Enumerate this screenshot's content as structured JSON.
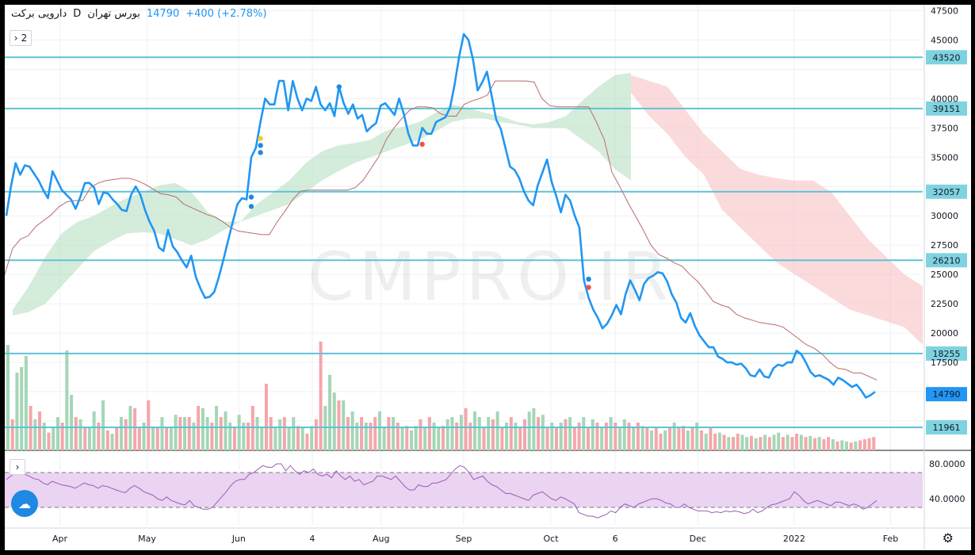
{
  "header": {
    "symbol": "دارویی برکت",
    "interval": "D",
    "exchange": "بورس تهران",
    "price": "14790",
    "change": "+400 (+2.78%)"
  },
  "controls": {
    "collapse_main": "2",
    "collapse_indicator": "›"
  },
  "watermark": "CMPRO.IR",
  "colors": {
    "price_line": "#2196f3",
    "hline": "#5fc3d6",
    "kumo_bull": "#b7dfc2",
    "kumo_bear": "#f8c2c4",
    "kijun": "#b96b6b",
    "vol_up": "#a5d6b7",
    "vol_down": "#f4a6aa",
    "rsi_line": "#9c5bb8",
    "rsi_band": "#ead4f1",
    "tag_bg": "#7fd3e0",
    "last_tag": "#2196f3"
  },
  "chart_data": {
    "type": "line",
    "symbol": "دارویی برکت",
    "interval": "D",
    "price": {
      "ylim": [
        10000,
        48000
      ],
      "yticks": [
        12500,
        15000,
        17500,
        20000,
        22500,
        25000,
        27500,
        30000,
        32500,
        35000,
        37500,
        40000,
        42500,
        45000,
        47500
      ],
      "hidden_ticks": [
        12500,
        32500,
        42500
      ],
      "horizontal_levels": [
        43520,
        39151,
        32057,
        26210,
        18255,
        11961
      ],
      "last_price": 14790,
      "x_labels": [
        "Apr",
        "May",
        "Jun",
        "4",
        "Aug",
        "Sep",
        "Oct",
        "6",
        "Dec",
        "2022",
        "Feb"
      ],
      "x_label_pos": [
        0.06,
        0.155,
        0.255,
        0.335,
        0.41,
        0.5,
        0.595,
        0.665,
        0.755,
        0.86,
        0.965
      ],
      "series": [
        {
          "kind": "close",
          "values": [
            30000,
            32500,
            34500,
            33500,
            34300,
            34200,
            33600,
            33000,
            32200,
            31500,
            33800,
            33000,
            32200,
            31800,
            31400,
            30600,
            31600,
            32800,
            32800,
            32400,
            31000,
            32000,
            31900,
            31400,
            31000,
            30500,
            30400,
            31800,
            32500,
            31800,
            30500,
            29500,
            28700,
            27300,
            27000,
            28800,
            27400,
            26900,
            26200,
            25600,
            26600,
            24800,
            23800,
            23000,
            23100,
            23500,
            24800,
            26300,
            27900,
            29500,
            31000,
            31500,
            31400,
            35000,
            35800,
            38000,
            40000,
            39500,
            39500,
            41500,
            41500,
            39000,
            41500,
            40000,
            39000,
            40000,
            39800,
            41000,
            39500,
            39000,
            39600,
            38500,
            41000,
            39600,
            38700,
            39500,
            38300,
            38600,
            37200,
            37600,
            37900,
            39400,
            39600,
            39100,
            38600,
            40000,
            38700,
            37000,
            36000,
            36000,
            37500,
            37000,
            37000,
            38000,
            38200,
            38400,
            39200,
            41200,
            43600,
            45500,
            45000,
            43300,
            40700,
            41400,
            42300,
            40300,
            38200,
            37400,
            35800,
            34200,
            33900,
            33200,
            32100,
            31300,
            30900,
            32600,
            33700,
            34800,
            32900,
            31700,
            30300,
            31800,
            31300,
            30000,
            29000,
            24500,
            23000,
            22000,
            21300,
            20400,
            20800,
            21500,
            22400,
            21600,
            23300,
            24500,
            23700,
            22800,
            24200,
            24700,
            24900,
            25200,
            25100,
            24400,
            23300,
            22600,
            21300,
            20900,
            21700,
            20600,
            19800,
            19300,
            18800,
            18800,
            18000,
            17800,
            17500,
            17500,
            17300,
            17400,
            17000,
            16400,
            16300,
            16900,
            16300,
            16200,
            17000,
            17300,
            17200,
            17500,
            17500,
            18500,
            18200,
            17500,
            16700,
            16300,
            16400,
            16200,
            16000,
            15600,
            16200,
            16000,
            15700,
            15400,
            15600,
            15100,
            14500,
            14700,
            15000
          ]
        },
        {
          "kind": "kijun",
          "values": [
            25000,
            27200,
            28000,
            28300,
            29100,
            29600,
            30100,
            30800,
            31200,
            31300,
            31300,
            32400,
            32800,
            33000,
            33100,
            33200,
            33200,
            33000,
            32700,
            32300,
            31900,
            31800,
            31600,
            31000,
            30700,
            30400,
            30100,
            29900,
            29500,
            29000,
            28700,
            28600,
            28500,
            28400,
            28400,
            29500,
            30400,
            31400,
            32100,
            32200,
            32200,
            32200,
            32200,
            32200,
            32200,
            32400,
            33000,
            34000,
            35000,
            36500,
            37500,
            38300,
            39000,
            39300,
            39300,
            39200,
            38700,
            38500,
            38500,
            39500,
            39800,
            40000,
            40300,
            41500,
            41500,
            41500,
            41500,
            41500,
            41400,
            40000,
            39400,
            39300,
            39300,
            39300,
            39300,
            39300,
            38000,
            36500,
            33700,
            32500,
            31200,
            30000,
            28800,
            27500,
            26700,
            26400,
            26000,
            25700,
            25000,
            24400,
            23600,
            22700,
            22400,
            22200,
            21600,
            21300,
            21100,
            20900,
            20800,
            20700,
            20500,
            20000,
            19500,
            19000,
            18700,
            18200,
            17500,
            17000,
            16900,
            16600,
            16600,
            16300,
            16000
          ]
        },
        {
          "kind": "kumo_bull",
          "upper": [
            22000,
            24000,
            26500,
            28500,
            29500,
            30000,
            30800,
            31500,
            32000,
            32600,
            32800,
            32000,
            30300,
            29500,
            29500,
            31000,
            32000,
            33000,
            34500,
            35500,
            36000,
            36200,
            36500,
            37300,
            37600,
            38000,
            38800,
            39500,
            39200,
            38800,
            38500,
            38000,
            37800,
            38000,
            38500,
            39800,
            41000,
            42000,
            42200
          ],
          "lower": [
            21500,
            21800,
            22500,
            24000,
            25500,
            27000,
            27800,
            28500,
            28600,
            28500,
            28000,
            27500,
            28000,
            28800,
            29500,
            30000,
            30500,
            31000,
            32000,
            33000,
            33800,
            34500,
            35000,
            35500,
            36000,
            36500,
            37200,
            38000,
            38300,
            38300,
            38000,
            37800,
            37500,
            37500,
            37500,
            36500,
            35500,
            34000,
            33000
          ]
        },
        {
          "kind": "kumo_bear",
          "upper": [
            42000,
            41500,
            41000,
            39000,
            37000,
            35500,
            34000,
            33500,
            33200,
            33000,
            33000,
            32000,
            30000,
            28000,
            26500,
            25000,
            24000
          ],
          "lower": [
            40500,
            38500,
            37000,
            35000,
            33500,
            30500,
            29000,
            27500,
            26000,
            25000,
            24000,
            23000,
            22000,
            21500,
            21000,
            20500,
            19000
          ]
        }
      ],
      "markers": [
        {
          "color": "#ffca28",
          "y": 36600
        },
        {
          "color": "#1e88e5",
          "y": 36000
        },
        {
          "color": "#1e88e5",
          "y": 35400
        },
        {
          "color": "#1e88e5",
          "y": 31600
        },
        {
          "color": "#1e88e5",
          "y": 30800
        },
        {
          "color": "#1e88e5",
          "y": 41000
        },
        {
          "color": "#ef5350",
          "y": 36100
        },
        {
          "color": "#1e88e5",
          "y": 24600
        },
        {
          "color": "#ef5350",
          "y": 23900
        }
      ]
    },
    "volume": {
      "values": [
        0.95,
        0.28,
        0.7,
        0.75,
        0.85,
        0.4,
        0.28,
        0.35,
        0.25,
        0.16,
        0.2,
        0.3,
        0.25,
        0.9,
        0.5,
        0.3,
        0.28,
        0.2,
        0.2,
        0.35,
        0.25,
        0.45,
        0.18,
        0.15,
        0.2,
        0.3,
        0.28,
        0.4,
        0.38,
        0.2,
        0.25,
        0.45,
        0.2,
        0.2,
        0.3,
        0.2,
        0.2,
        0.32,
        0.3,
        0.3,
        0.3,
        0.25,
        0.4,
        0.38,
        0.3,
        0.25,
        0.4,
        0.3,
        0.35,
        0.25,
        0.2,
        0.32,
        0.25,
        0.25,
        0.4,
        0.3,
        0.2,
        0.6,
        0.3,
        0.2,
        0.28,
        0.3,
        0.2,
        0.3,
        0.22,
        0.2,
        0.15,
        0.22,
        0.28,
        0.98,
        0.4,
        0.68,
        0.52,
        0.45,
        0.45,
        0.3,
        0.35,
        0.25,
        0.3,
        0.25,
        0.25,
        0.3,
        0.35,
        0.2,
        0.3,
        0.3,
        0.25,
        0.2,
        0.22,
        0.18,
        0.22,
        0.28,
        0.2,
        0.3,
        0.25,
        0.2,
        0.22,
        0.28,
        0.3,
        0.25,
        0.32,
        0.38,
        0.25,
        0.35,
        0.3,
        0.2,
        0.3,
        0.28,
        0.35,
        0.2,
        0.25,
        0.3,
        0.25,
        0.2,
        0.28,
        0.35,
        0.38,
        0.3,
        0.32,
        0.2,
        0.25,
        0.2,
        0.25,
        0.28,
        0.3,
        0.2,
        0.25,
        0.3,
        0.2,
        0.28,
        0.25,
        0.2,
        0.25,
        0.3,
        0.25,
        0.2,
        0.28,
        0.25,
        0.2,
        0.25,
        0.22,
        0.2,
        0.18,
        0.2,
        0.15,
        0.18,
        0.2,
        0.25,
        0.2,
        0.22,
        0.18,
        0.2,
        0.25,
        0.18,
        0.15,
        0.2,
        0.15,
        0.16,
        0.14,
        0.12,
        0.12,
        0.15,
        0.14,
        0.12,
        0.13,
        0.11,
        0.12,
        0.14,
        0.12,
        0.14,
        0.16,
        0.12,
        0.14,
        0.12,
        0.15,
        0.14,
        0.12,
        0.13,
        0.11,
        0.12,
        0.1,
        0.12,
        0.1,
        0.08,
        0.09,
        0.08,
        0.07,
        0.08,
        0.09,
        0.1,
        0.11,
        0.12
      ],
      "colors_up": [
        1,
        0,
        1,
        1,
        1,
        0,
        1,
        0,
        1,
        0,
        1,
        1,
        0,
        1,
        1,
        0,
        1,
        0,
        1,
        1,
        0,
        1,
        0,
        1,
        0,
        1,
        0,
        1,
        0,
        0,
        1,
        0,
        1,
        0,
        1,
        0,
        1,
        1,
        0,
        1,
        0,
        1,
        0,
        1,
        1,
        0,
        1,
        0,
        1,
        1,
        0,
        1,
        1,
        0,
        0,
        1,
        1,
        0,
        0,
        1,
        1,
        0,
        1,
        1,
        0,
        1,
        0,
        1,
        0,
        0,
        1,
        1,
        1,
        0,
        1,
        0,
        1,
        1,
        0,
        1,
        0,
        0,
        1,
        1,
        0,
        1,
        0,
        1,
        0,
        1,
        1,
        0,
        1,
        0,
        1,
        1,
        0,
        1,
        1,
        0,
        1,
        0,
        0,
        1,
        1,
        0,
        1,
        0,
        1,
        0,
        1,
        0,
        1,
        0,
        0,
        1,
        1,
        0,
        1,
        0,
        1,
        0,
        1,
        0,
        1,
        0,
        0,
        1,
        0,
        1,
        0,
        1,
        0,
        1,
        0,
        1,
        1,
        0,
        1,
        0,
        1,
        0,
        1,
        0,
        0,
        1,
        0,
        1,
        0,
        0,
        1,
        0,
        1,
        0,
        1,
        0,
        0,
        1,
        0,
        1,
        0,
        0,
        1,
        1,
        0,
        1,
        0,
        1,
        0,
        1,
        1,
        0,
        1,
        0,
        0,
        1,
        0,
        1,
        0,
        1,
        0,
        0,
        1,
        0,
        1,
        1,
        0,
        1
      ]
    },
    "rsi": {
      "ylim": [
        10,
        90
      ],
      "yticks": [
        40,
        80
      ],
      "tick_labels": [
        "40.0000",
        "80.0000"
      ],
      "band": [
        30,
        70
      ],
      "values": [
        62,
        66,
        70,
        72,
        68,
        66,
        63,
        62,
        58,
        56,
        60,
        58,
        56,
        55,
        54,
        52,
        55,
        58,
        56,
        55,
        52,
        55,
        54,
        52,
        50,
        48,
        47,
        52,
        55,
        52,
        48,
        46,
        44,
        40,
        38,
        42,
        38,
        36,
        34,
        33,
        38,
        32,
        30,
        28,
        28,
        30,
        36,
        42,
        48,
        55,
        60,
        62,
        62,
        68,
        70,
        74,
        78,
        76,
        76,
        80,
        80,
        72,
        78,
        72,
        68,
        72,
        70,
        74,
        68,
        66,
        68,
        64,
        72,
        66,
        62,
        66,
        60,
        62,
        56,
        58,
        60,
        66,
        66,
        64,
        62,
        66,
        60,
        54,
        50,
        50,
        56,
        54,
        54,
        58,
        58,
        60,
        62,
        68,
        74,
        78,
        76,
        70,
        62,
        64,
        66,
        60,
        56,
        54,
        50,
        46,
        46,
        44,
        42,
        40,
        38,
        44,
        46,
        48,
        44,
        40,
        38,
        42,
        40,
        37,
        34,
        24,
        22,
        20,
        20,
        18,
        20,
        22,
        26,
        24,
        30,
        34,
        32,
        30,
        34,
        36,
        38,
        40,
        40,
        38,
        35,
        34,
        30,
        30,
        34,
        30,
        28,
        26,
        26,
        26,
        24,
        25,
        24,
        26,
        25,
        26,
        25,
        23,
        24,
        28,
        24,
        26,
        30,
        33,
        34,
        36,
        38,
        40,
        48,
        44,
        38,
        34,
        36,
        38,
        36,
        34,
        32,
        36,
        36,
        34,
        32,
        34,
        32,
        28,
        30,
        34,
        38
      ]
    }
  }
}
